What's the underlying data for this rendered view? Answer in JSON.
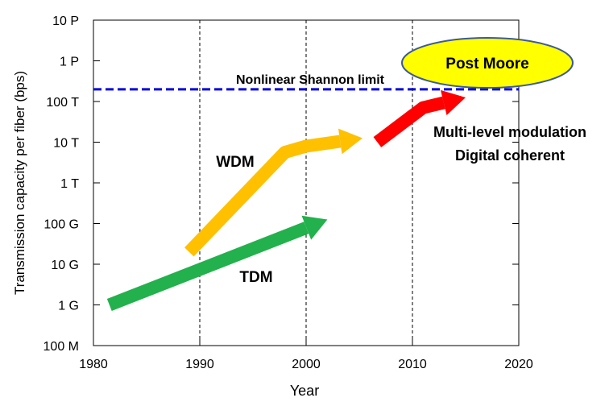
{
  "chart_data": {
    "type": "line",
    "title": "",
    "xlabel": "Year",
    "ylabel": "Transmission capacity per fiber (bps)",
    "xlim": [
      1980,
      2020
    ],
    "ylim_log10": [
      8,
      16
    ],
    "yscale": "log",
    "x_ticks": [
      1980,
      1990,
      2000,
      2010,
      2020
    ],
    "y_ticks": [
      {
        "label": "100 M",
        "log10": 8
      },
      {
        "label": "1 G",
        "log10": 9
      },
      {
        "label": "10 G",
        "log10": 10
      },
      {
        "label": "100 G",
        "log10": 11
      },
      {
        "label": "1 T",
        "log10": 12
      },
      {
        "label": "10 T",
        "log10": 13
      },
      {
        "label": "100 T",
        "log10": 14
      },
      {
        "label": "1 P",
        "log10": 15
      },
      {
        "label": "10 P",
        "log10": 16
      }
    ],
    "vertical_gridlines": [
      1990,
      2000,
      2010
    ],
    "grid_style": "dashed",
    "shannon_limit": {
      "label": "Nonlinear Shannon limit",
      "log10": 14.3,
      "color": "#0000dd"
    },
    "series": [
      {
        "name": "TDM",
        "color": "#22b14c",
        "points": [
          {
            "x": 1981.5,
            "log10": 9.0
          },
          {
            "x": 2002,
            "log10": 11.1
          }
        ]
      },
      {
        "name": "WDM",
        "color": "#ffc000",
        "points": [
          {
            "x": 1989,
            "log10": 10.3
          },
          {
            "x": 1998,
            "log10": 12.75
          },
          {
            "x": 2000,
            "log10": 12.9
          },
          {
            "x": 2005.3,
            "log10": 13.1
          }
        ]
      },
      {
        "name": "",
        "color": "#ff0000",
        "points": [
          {
            "x": 2006.7,
            "log10": 13.0
          },
          {
            "x": 2011,
            "log10": 13.85
          },
          {
            "x": 2015,
            "log10": 14.1
          }
        ]
      }
    ],
    "annotations": {
      "wdm": "WDM",
      "tdm": "TDM",
      "multi_level": "Multi-level modulation",
      "digital_coherent": "Digital coherent",
      "post_moore": "Post Moore"
    },
    "post_moore_colors": {
      "fill": "#ffff00",
      "stroke": "#3b5a9a"
    }
  }
}
